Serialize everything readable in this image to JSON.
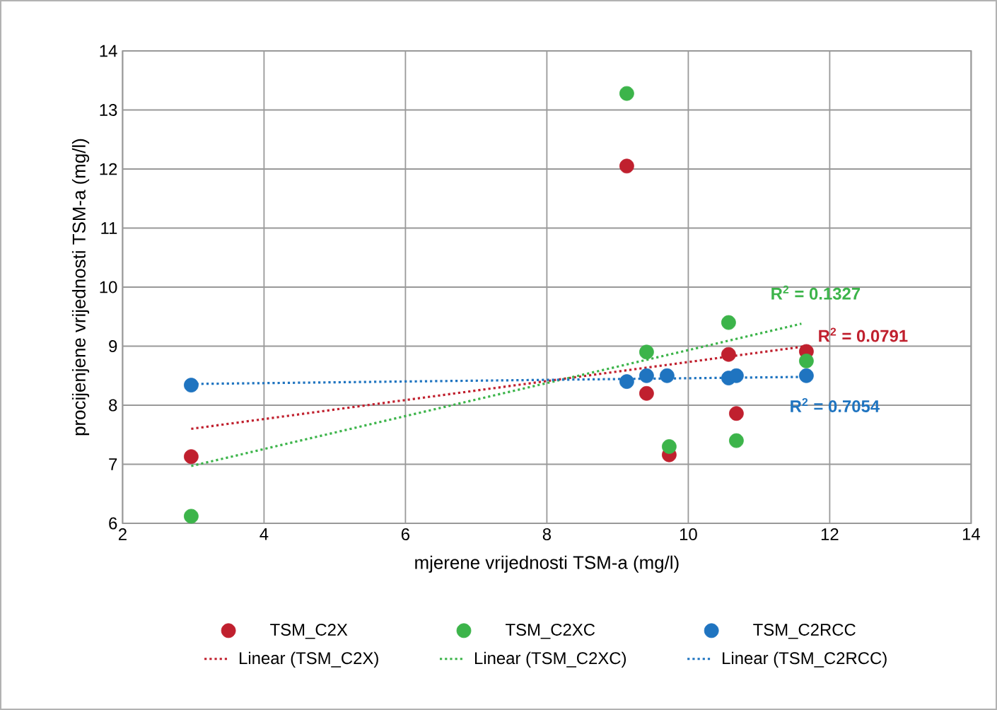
{
  "chart_data": {
    "type": "scatter",
    "xlabel": "mjerene vrijednosti TSM-a (mg/l)",
    "ylabel": "procijenjene vrijednosti TSM-a (mg/l)",
    "xlim": [
      2,
      14
    ],
    "xticks": [
      2,
      4,
      6,
      8,
      10,
      12,
      14
    ],
    "ylim": [
      6,
      14
    ],
    "yticks": [
      6,
      7,
      8,
      9,
      10,
      11,
      12,
      13,
      14
    ],
    "grid": true,
    "legend": "bottom",
    "marker": "circle",
    "series": [
      {
        "name": "TSM_C2X",
        "color": "#c0202e",
        "x": [
          2.97,
          9.13,
          9.41,
          9.73,
          10.57,
          10.68,
          11.67
        ],
        "values": [
          7.13,
          12.05,
          8.2,
          7.16,
          8.86,
          7.86,
          8.91
        ]
      },
      {
        "name": "TSM_C2XC",
        "color": "#3cb44a",
        "x": [
          2.97,
          9.13,
          9.41,
          9.73,
          10.57,
          10.68,
          11.67
        ],
        "values": [
          6.12,
          13.28,
          8.9,
          7.3,
          9.4,
          7.4,
          8.75
        ]
      },
      {
        "name": "TSM_C2RCC",
        "color": "#1f74c0",
        "x": [
          2.97,
          9.13,
          9.41,
          9.7,
          10.57,
          10.68,
          11.67
        ],
        "values": [
          8.34,
          8.4,
          8.5,
          8.5,
          8.46,
          8.5,
          8.5
        ]
      },
      {
        "name": "Linear (TSM_C2X)",
        "type": "line",
        "marker": "none",
        "line_style": "dotted",
        "color": "#c0202e",
        "x": [
          2.97,
          11.67
        ],
        "values": [
          7.6,
          9.0
        ]
      },
      {
        "name": "Linear (TSM_C2XC)",
        "type": "line",
        "marker": "none",
        "line_style": "dotted",
        "color": "#3cb44a",
        "x": [
          2.97,
          11.6
        ],
        "values": [
          6.97,
          9.38
        ]
      },
      {
        "name": "Linear (TSM_C2RCC)",
        "type": "line",
        "marker": "none",
        "line_style": "dotted",
        "color": "#1f74c0",
        "x": [
          2.97,
          11.67
        ],
        "values": [
          8.36,
          8.48
        ]
      }
    ],
    "annotations": [
      "R$^{2}$ = 0.0791",
      "R$^{2}$ = 0.1327",
      "R$^{2}$ = 0.7054"
    ]
  }
}
